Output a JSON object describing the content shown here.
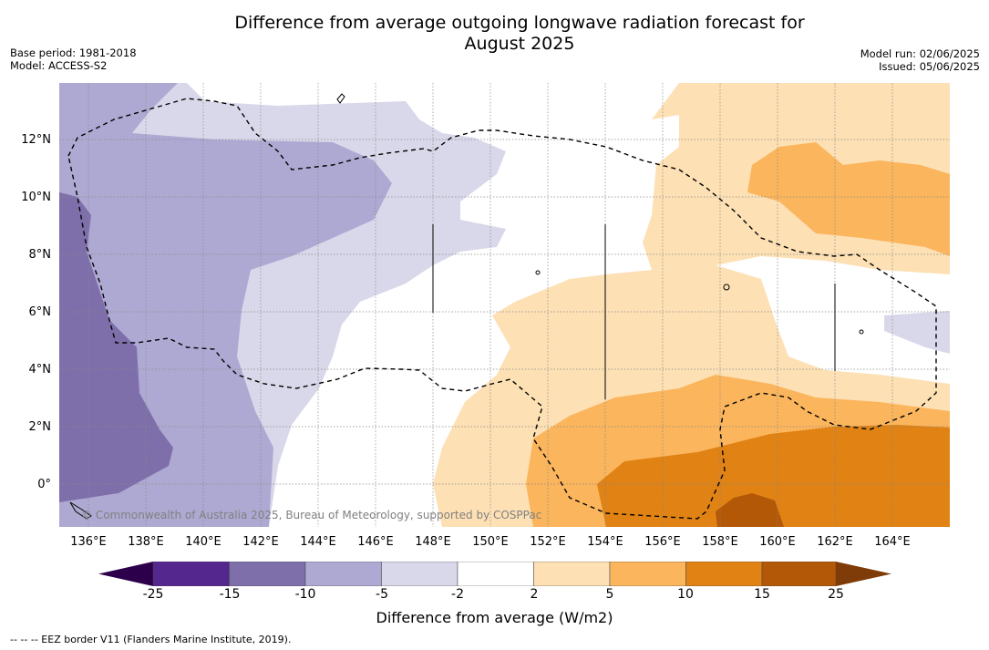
{
  "title_line1": "Difference from average outgoing longwave radiation forecast for",
  "title_line2": "August 2025",
  "base_period": "Base period: 1981-2018",
  "model": "Model: ACCESS-S2",
  "model_run": "Model run: 02/06/2025",
  "issued": "Issued: 05/06/2025",
  "copyright": "© Commonwealth of Australia 2025, Bureau of Meteorology, supported by COSPPac",
  "lat_labels": [
    "12°N",
    "10°N",
    "8°N",
    "6°N",
    "4°N",
    "2°N",
    "0°"
  ],
  "lon_labels": [
    "136°E",
    "138°E",
    "140°E",
    "142°E",
    "144°E",
    "146°E",
    "148°E",
    "150°E",
    "152°E",
    "154°E",
    "156°E",
    "158°E",
    "160°E",
    "162°E",
    "164°E"
  ],
  "colorbar": {
    "ticks": [
      "-25",
      "-15",
      "-10",
      "-5",
      "-2",
      "2",
      "5",
      "10",
      "15",
      "25"
    ],
    "label": "Difference from average (W/m2)",
    "colors": [
      "#54278f",
      "#7e6fab",
      "#aea9d2",
      "#d9d8ea",
      "#ffffff",
      "#fde0b4",
      "#fbb55d",
      "#e08214",
      "#b35806"
    ],
    "under_color": "#2d004b",
    "over_color": "#7f3b08"
  },
  "footnote": "-- -- -- EEZ border V11 (Flanders Marine Institute, 2019)."
}
